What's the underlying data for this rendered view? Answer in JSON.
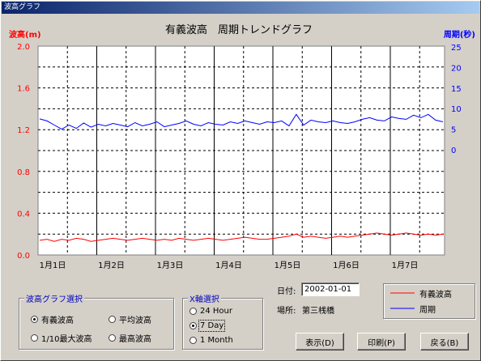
{
  "window": {
    "title": "波高グラフ"
  },
  "chart_data": {
    "type": "line",
    "title": "有義波高　周期トレンドグラフ",
    "ylabel_left": "波高(m)",
    "ylabel_right": "周期(秒)",
    "yticks_left": [
      "2.0",
      "1.6",
      "1.2",
      "0.8",
      "0.4",
      "0.0"
    ],
    "yticks_right": [
      "25",
      "20",
      "15",
      "10",
      "5",
      "0"
    ],
    "xticks": [
      "1月1日",
      "1月2日",
      "1月3日",
      "1月4日",
      "1月5日",
      "1月6日",
      "1月7日"
    ],
    "ylim_left": [
      0,
      2.0
    ],
    "ylim_right_note": "right axis 0..25 occupies upper portion",
    "grid": true,
    "series": [
      {
        "name": "有義波高",
        "color": "#ff0000",
        "axis": "left",
        "values": [
          0.14,
          0.15,
          0.13,
          0.15,
          0.14,
          0.16,
          0.15,
          0.13,
          0.14,
          0.15,
          0.16,
          0.15,
          0.14,
          0.15,
          0.16,
          0.15,
          0.14,
          0.15,
          0.14,
          0.16,
          0.15,
          0.14,
          0.15,
          0.16,
          0.15,
          0.14,
          0.15,
          0.16,
          0.17,
          0.16,
          0.15,
          0.15,
          0.16,
          0.17,
          0.18,
          0.2,
          0.17,
          0.18,
          0.17,
          0.16,
          0.17,
          0.18,
          0.17,
          0.18,
          0.19,
          0.2,
          0.21,
          0.2,
          0.19,
          0.2,
          0.21,
          0.2,
          0.19,
          0.2,
          0.19,
          0.2
        ]
      },
      {
        "name": "周期",
        "color": "#0000ff",
        "axis": "right",
        "values": [
          7.5,
          7.0,
          6.0,
          5.0,
          6.0,
          5.2,
          6.5,
          5.5,
          6.2,
          5.8,
          6.4,
          6.0,
          5.6,
          6.6,
          5.8,
          6.2,
          6.8,
          5.6,
          6.0,
          6.4,
          7.0,
          6.2,
          5.8,
          6.6,
          6.2,
          6.0,
          6.8,
          6.4,
          7.0,
          6.6,
          6.2,
          6.8,
          6.6,
          7.0,
          5.8,
          8.6,
          6.0,
          7.2,
          6.8,
          6.6,
          7.0,
          6.6,
          6.4,
          6.8,
          7.4,
          7.8,
          7.2,
          7.0,
          8.0,
          7.6,
          7.4,
          8.4,
          7.8,
          8.6,
          7.2,
          6.8
        ]
      }
    ]
  },
  "wave_select": {
    "caption": "波高グラフ選択",
    "options": [
      "有義波高",
      "平均波高",
      "1/10最大波高",
      "最高波高"
    ],
    "selected": 0
  },
  "x_axis_select": {
    "caption": "X軸選択",
    "options": [
      "24 Hour",
      "7 Day",
      "1 Month"
    ],
    "selected": 1
  },
  "info": {
    "date_label": "日付:",
    "date_value": "2002-01-01",
    "place_label": "場所:",
    "place_value": "第三桟橋"
  },
  "legend": [
    {
      "label": "有義波高",
      "color": "#ff0000"
    },
    {
      "label": "周期",
      "color": "#0000ff"
    }
  ],
  "buttons": {
    "display": "表示(D)",
    "print": "印刷(P)",
    "back": "戻る(B)"
  }
}
